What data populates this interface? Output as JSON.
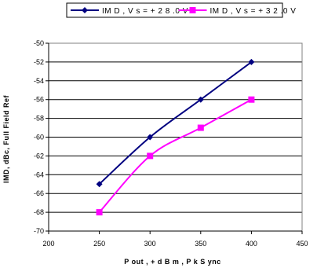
{
  "chart_data": {
    "type": "line",
    "xlabel": "P out , + d B m , P k S ync",
    "ylabel": "IMD, dBc, Full Field Ref",
    "xlim": [
      200,
      450
    ],
    "ylim": [
      -70,
      -50
    ],
    "x_ticks": [
      200,
      250,
      300,
      350,
      400,
      450
    ],
    "y_ticks": [
      -50,
      -52,
      -54,
      -56,
      -58,
      -60,
      -62,
      -64,
      -66,
      -68,
      -70
    ],
    "grid": "horizontal",
    "legend_position": "top",
    "series": [
      {
        "name": "IM D , V s = + 2 8 .0 V",
        "color": "#000080",
        "marker": "diamond",
        "x": [
          250,
          300,
          350,
          400
        ],
        "values": [
          -65,
          -60,
          -56,
          -52
        ]
      },
      {
        "name": "IM D , V s = + 3 2 .0 V",
        "color": "#ff00ff",
        "marker": "square",
        "x": [
          250,
          300,
          350,
          400
        ],
        "values": [
          -68,
          -62,
          -59,
          -56
        ]
      }
    ]
  }
}
